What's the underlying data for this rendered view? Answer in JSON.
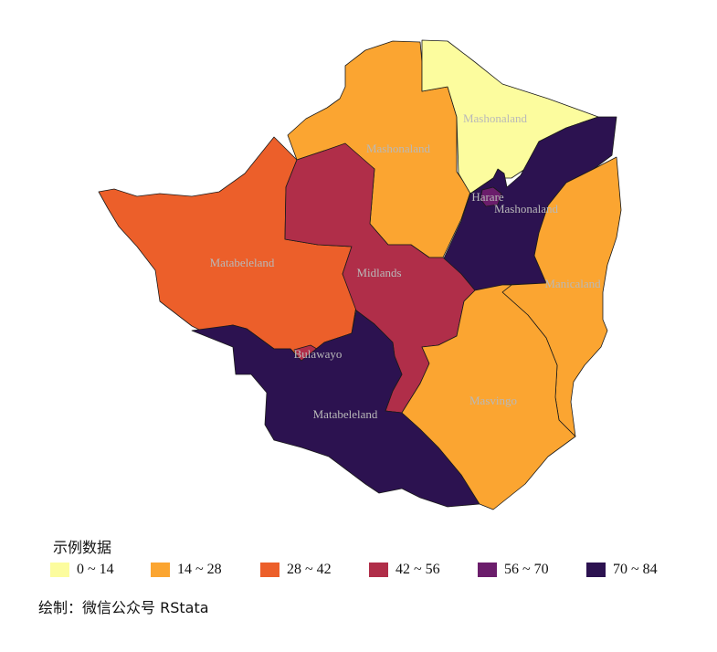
{
  "map": {
    "regions": [
      {
        "name": "Mashonaland West",
        "label": "Mashonaland",
        "value_class": "14 ~ 28"
      },
      {
        "name": "Mashonaland Central",
        "label": "Mashonaland",
        "value_class": "0 ~ 14"
      },
      {
        "name": "Mashonaland East",
        "label": "Mashonaland",
        "value_class": "70 ~ 84"
      },
      {
        "name": "Harare",
        "label": "Harare",
        "value_class": "56 ~ 70"
      },
      {
        "name": "Matabeleland North",
        "label": "Matabeleland",
        "value_class": "28 ~ 42"
      },
      {
        "name": "Midlands",
        "label": "Midlands",
        "value_class": "42 ~ 56"
      },
      {
        "name": "Bulawayo",
        "label": "Bulawayo",
        "value_class": "42 ~ 56"
      },
      {
        "name": "Matabeleland South",
        "label": "Matabeleland",
        "value_class": "70 ~ 84"
      },
      {
        "name": "Masvingo",
        "label": "Masvingo",
        "value_class": "14 ~ 28"
      },
      {
        "name": "Manicaland",
        "label": "Manicaland",
        "value_class": "14 ~ 28"
      }
    ]
  },
  "legend": {
    "title": "示例数据",
    "items": [
      {
        "label": "0 ~ 14",
        "color": "#FCFC9E"
      },
      {
        "label": "14 ~ 28",
        "color": "#FBA531"
      },
      {
        "label": "28 ~ 42",
        "color": "#EC5F2A"
      },
      {
        "label": "42 ~ 56",
        "color": "#B02E49"
      },
      {
        "label": "56 ~ 70",
        "color": "#6B1D6B"
      },
      {
        "label": "70 ~ 84",
        "color": "#2C1250"
      }
    ]
  },
  "caption": "绘制：微信公众号 RStata"
}
